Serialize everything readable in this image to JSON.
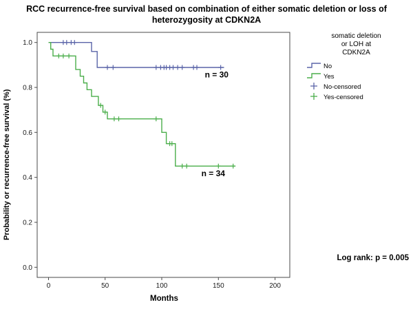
{
  "title": "RCC recurrence-free survival based on combination of either somatic deletion or loss of heterozygosity at CDKN2A",
  "axes": {
    "x_label": "Months",
    "y_label": "Probability or recurrence-free survival (%)",
    "x_ticks": [
      0,
      50,
      100,
      150,
      200
    ],
    "y_ticks": [
      "0.0",
      "0.2",
      "0.4",
      "0.6",
      "0.8",
      "1.0"
    ]
  },
  "legend": {
    "title": "somatic deletion or LOH at CDKN2A",
    "items": [
      {
        "label": "No",
        "marker": "step",
        "color": "#5a64a8"
      },
      {
        "label": "Yes",
        "marker": "step",
        "color": "#4aae4a"
      },
      {
        "label": "No-censored",
        "marker": "plus",
        "color": "#5a64a8"
      },
      {
        "label": "Yes-censored",
        "marker": "plus",
        "color": "#4aae4a"
      }
    ]
  },
  "stats": {
    "logrank": "Log rank: p = 0.005"
  },
  "chart_data": {
    "type": "line",
    "subtype": "kaplan-meier-step",
    "title": "RCC recurrence-free survival based on combination of either somatic deletion or loss of heterozygosity at CDKN2A",
    "xlabel": "Months",
    "ylabel": "Probability or recurrence-free survival (%)",
    "xlim": [
      -10,
      213
    ],
    "ylim": [
      -0.045,
      1.045
    ],
    "x_ticks": [
      0,
      50,
      100,
      150,
      200
    ],
    "y_ticks": [
      0.0,
      0.2,
      0.4,
      0.6,
      0.8,
      1.0
    ],
    "grid": false,
    "legend_position": "right",
    "series": [
      {
        "name": "No",
        "n": 30,
        "color": "#5a64a8",
        "steps": [
          [
            0,
            1.0
          ],
          [
            38,
            1.0
          ],
          [
            38,
            0.96
          ],
          [
            43,
            0.96
          ],
          [
            43,
            0.889
          ],
          [
            155,
            0.889
          ]
        ],
        "censored": [
          [
            13,
            1.0
          ],
          [
            16,
            1.0
          ],
          [
            20,
            1.0
          ],
          [
            23,
            1.0
          ],
          [
            52,
            0.889
          ],
          [
            57,
            0.889
          ],
          [
            95,
            0.889
          ],
          [
            99,
            0.889
          ],
          [
            102,
            0.889
          ],
          [
            104,
            0.889
          ],
          [
            107,
            0.889
          ],
          [
            110,
            0.889
          ],
          [
            114,
            0.889
          ],
          [
            118,
            0.889
          ],
          [
            128,
            0.889
          ],
          [
            131,
            0.889
          ],
          [
            152,
            0.889
          ]
        ]
      },
      {
        "name": "Yes",
        "n": 34,
        "color": "#4aae4a",
        "steps": [
          [
            0,
            1.0
          ],
          [
            2,
            1.0
          ],
          [
            2,
            0.97
          ],
          [
            4,
            0.97
          ],
          [
            4,
            0.94
          ],
          [
            24,
            0.94
          ],
          [
            24,
            0.88
          ],
          [
            28,
            0.88
          ],
          [
            28,
            0.85
          ],
          [
            31,
            0.85
          ],
          [
            31,
            0.82
          ],
          [
            34,
            0.82
          ],
          [
            34,
            0.79
          ],
          [
            38,
            0.79
          ],
          [
            38,
            0.76
          ],
          [
            44,
            0.76
          ],
          [
            44,
            0.72
          ],
          [
            48,
            0.72
          ],
          [
            48,
            0.69
          ],
          [
            52,
            0.69
          ],
          [
            52,
            0.66
          ],
          [
            100,
            0.66
          ],
          [
            100,
            0.6
          ],
          [
            104,
            0.6
          ],
          [
            104,
            0.55
          ],
          [
            112,
            0.55
          ],
          [
            112,
            0.45
          ],
          [
            165,
            0.45
          ]
        ],
        "censored": [
          [
            9,
            0.94
          ],
          [
            13,
            0.94
          ],
          [
            18,
            0.94
          ],
          [
            46,
            0.72
          ],
          [
            50,
            0.69
          ],
          [
            58,
            0.66
          ],
          [
            62,
            0.66
          ],
          [
            95,
            0.66
          ],
          [
            107,
            0.55
          ],
          [
            109,
            0.55
          ],
          [
            118,
            0.45
          ],
          [
            122,
            0.45
          ],
          [
            150,
            0.45
          ],
          [
            163,
            0.45
          ]
        ]
      }
    ],
    "annotations": [
      {
        "text": "n = 30",
        "x": 138,
        "y": 0.845
      },
      {
        "text": "n = 34",
        "x": 135,
        "y": 0.405
      },
      {
        "text": "Log rank: p = 0.005",
        "position": "bottom-right-outside"
      }
    ]
  }
}
